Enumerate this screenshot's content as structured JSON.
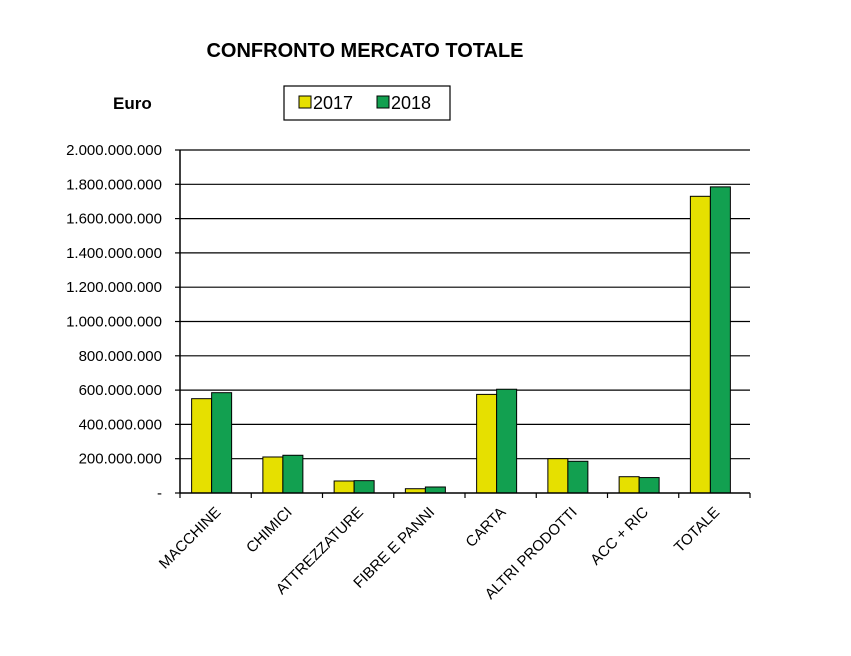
{
  "chart_data": {
    "type": "bar",
    "title": "CONFRONTO MERCATO TOTALE",
    "ylabel": "Euro",
    "xlabel": "",
    "ylim": [
      0,
      2000000000
    ],
    "y_ticks": [
      {
        "value": 0,
        "label": "-"
      },
      {
        "value": 200000000,
        "label": "200.000.000"
      },
      {
        "value": 400000000,
        "label": "400.000.000"
      },
      {
        "value": 600000000,
        "label": "600.000.000"
      },
      {
        "value": 800000000,
        "label": "800.000.000"
      },
      {
        "value": 1000000000,
        "label": "1.000.000.000"
      },
      {
        "value": 1200000000,
        "label": "1.200.000.000"
      },
      {
        "value": 1400000000,
        "label": "1.400.000.000"
      },
      {
        "value": 1600000000,
        "label": "1.600.000.000"
      },
      {
        "value": 1800000000,
        "label": "1.800.000.000"
      },
      {
        "value": 2000000000,
        "label": "2.000.000.000"
      }
    ],
    "grid": true,
    "legend_position": "top",
    "categories": [
      "MACCHINE",
      "CHIMICI",
      "ATTREZZATURE",
      "FIBRE E PANNI",
      "CARTA",
      "ALTRI PRODOTTI",
      "ACC + RIC",
      "TOTALE"
    ],
    "series": [
      {
        "name": "2017",
        "color": "#e6e000",
        "values": [
          550000000,
          210000000,
          70000000,
          25000000,
          575000000,
          200000000,
          95000000,
          1730000000
        ]
      },
      {
        "name": "2018",
        "color": "#12a050",
        "values": [
          585000000,
          220000000,
          72000000,
          35000000,
          605000000,
          185000000,
          90000000,
          1785000000
        ]
      }
    ]
  }
}
